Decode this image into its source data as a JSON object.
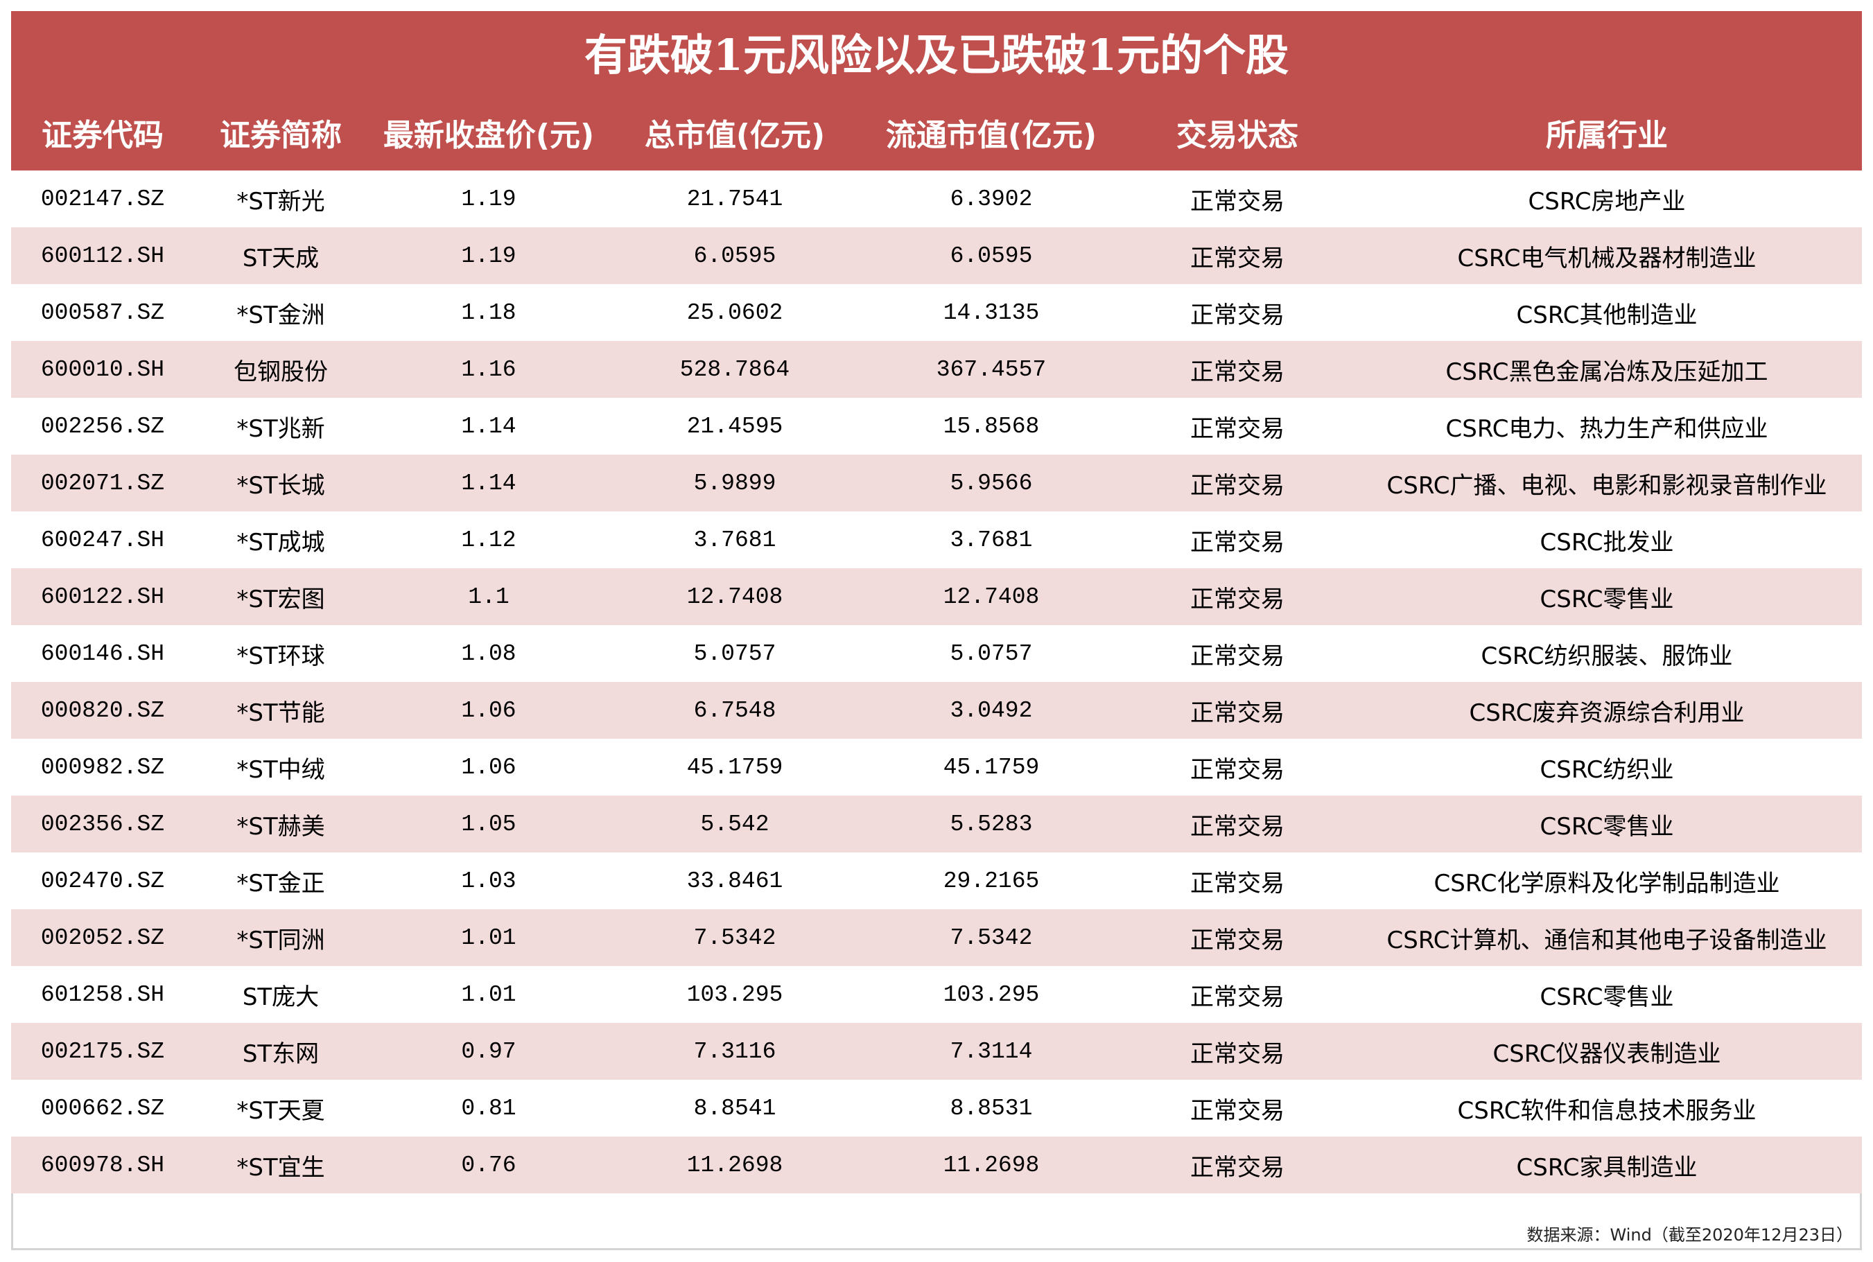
{
  "title": "有跌破1元风险以及已跌破1元的个股",
  "colors": {
    "header_bg": "#C0504D",
    "header_text": "#FFFFFF",
    "row_alt_bg": "#F2DCDB",
    "row_bg": "#FFFFFF",
    "footer_border": "#D4D4D4"
  },
  "columns": [
    "证券代码",
    "证券简称",
    "最新收盘价(元)",
    "总市值(亿元)",
    "流通市值(亿元)",
    "交易状态",
    "所属行业"
  ],
  "rows": [
    {
      "code": "002147.SZ",
      "name": "*ST新光",
      "close": "1.19",
      "mktcap": "21.7541",
      "float_mktcap": "6.3902",
      "status": "正常交易",
      "industry": "CSRC房地产业"
    },
    {
      "code": "600112.SH",
      "name": "ST天成",
      "close": "1.19",
      "mktcap": "6.0595",
      "float_mktcap": "6.0595",
      "status": "正常交易",
      "industry": "CSRC电气机械及器材制造业"
    },
    {
      "code": "000587.SZ",
      "name": "*ST金洲",
      "close": "1.18",
      "mktcap": "25.0602",
      "float_mktcap": "14.3135",
      "status": "正常交易",
      "industry": "CSRC其他制造业"
    },
    {
      "code": "600010.SH",
      "name": "包钢股份",
      "close": "1.16",
      "mktcap": "528.7864",
      "float_mktcap": "367.4557",
      "status": "正常交易",
      "industry": "CSRC黑色金属冶炼及压延加工"
    },
    {
      "code": "002256.SZ",
      "name": "*ST兆新",
      "close": "1.14",
      "mktcap": "21.4595",
      "float_mktcap": "15.8568",
      "status": "正常交易",
      "industry": "CSRC电力、热力生产和供应业"
    },
    {
      "code": "002071.SZ",
      "name": "*ST长城",
      "close": "1.14",
      "mktcap": "5.9899",
      "float_mktcap": "5.9566",
      "status": "正常交易",
      "industry": "CSRC广播、电视、电影和影视录音制作业"
    },
    {
      "code": "600247.SH",
      "name": "*ST成城",
      "close": "1.12",
      "mktcap": "3.7681",
      "float_mktcap": "3.7681",
      "status": "正常交易",
      "industry": "CSRC批发业"
    },
    {
      "code": "600122.SH",
      "name": "*ST宏图",
      "close": "1.1",
      "mktcap": "12.7408",
      "float_mktcap": "12.7408",
      "status": "正常交易",
      "industry": "CSRC零售业"
    },
    {
      "code": "600146.SH",
      "name": "*ST环球",
      "close": "1.08",
      "mktcap": "5.0757",
      "float_mktcap": "5.0757",
      "status": "正常交易",
      "industry": "CSRC纺织服装、服饰业"
    },
    {
      "code": "000820.SZ",
      "name": "*ST节能",
      "close": "1.06",
      "mktcap": "6.7548",
      "float_mktcap": "3.0492",
      "status": "正常交易",
      "industry": "CSRC废弃资源综合利用业"
    },
    {
      "code": "000982.SZ",
      "name": "*ST中绒",
      "close": "1.06",
      "mktcap": "45.1759",
      "float_mktcap": "45.1759",
      "status": "正常交易",
      "industry": "CSRC纺织业"
    },
    {
      "code": "002356.SZ",
      "name": "*ST赫美",
      "close": "1.05",
      "mktcap": "5.542",
      "float_mktcap": "5.5283",
      "status": "正常交易",
      "industry": "CSRC零售业"
    },
    {
      "code": "002470.SZ",
      "name": "*ST金正",
      "close": "1.03",
      "mktcap": "33.8461",
      "float_mktcap": "29.2165",
      "status": "正常交易",
      "industry": "CSRC化学原料及化学制品制造业"
    },
    {
      "code": "002052.SZ",
      "name": "*ST同洲",
      "close": "1.01",
      "mktcap": "7.5342",
      "float_mktcap": "7.5342",
      "status": "正常交易",
      "industry": "CSRC计算机、通信和其他电子设备制造业"
    },
    {
      "code": "601258.SH",
      "name": "ST庞大",
      "close": "1.01",
      "mktcap": "103.295",
      "float_mktcap": "103.295",
      "status": "正常交易",
      "industry": "CSRC零售业"
    },
    {
      "code": "002175.SZ",
      "name": "ST东网",
      "close": "0.97",
      "mktcap": "7.3116",
      "float_mktcap": "7.3114",
      "status": "正常交易",
      "industry": "CSRC仪器仪表制造业"
    },
    {
      "code": "000662.SZ",
      "name": "*ST天夏",
      "close": "0.81",
      "mktcap": "8.8541",
      "float_mktcap": "8.8531",
      "status": "正常交易",
      "industry": "CSRC软件和信息技术服务业"
    },
    {
      "code": "600978.SH",
      "name": "*ST宜生",
      "close": "0.76",
      "mktcap": "11.2698",
      "float_mktcap": "11.2698",
      "status": "正常交易",
      "industry": "CSRC家具制造业"
    }
  ],
  "footer": {
    "source": "数据来源：Wind（截至2020年12月23日）"
  }
}
